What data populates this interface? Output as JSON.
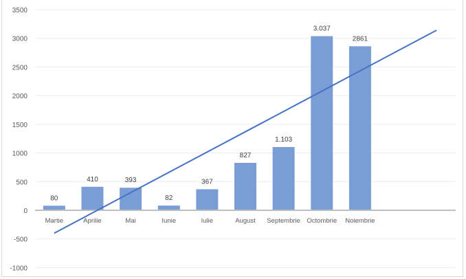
{
  "chart_data": {
    "type": "bar",
    "title": "",
    "xlabel": "",
    "ylabel": "",
    "ylim": [
      -1000,
      3500
    ],
    "yticks": [
      3500,
      3000,
      2500,
      2000,
      1500,
      1000,
      500,
      0,
      -500,
      -1000
    ],
    "grid": true,
    "legend": "none",
    "categories": [
      "Martie",
      "Aprilie",
      "Mai",
      "Iunie",
      "Iulie",
      "August",
      "Septembrie",
      "Octombrie",
      "Noiembrie",
      "",
      ""
    ],
    "values": [
      80,
      410,
      393,
      82,
      367,
      827,
      1103,
      3037,
      2861,
      null,
      null
    ],
    "data_labels": [
      "80",
      "410",
      "393",
      "82",
      "367",
      "827",
      "1.103",
      "3.037",
      "2861",
      "",
      ""
    ],
    "trendline": {
      "type": "linear",
      "start_value": -400,
      "end_value": 3140,
      "start_category_index": 0,
      "end_category_index": 10
    },
    "colors": {
      "bar": "#7b9dd6",
      "trendline": "#4472c4",
      "grid": "#ececec",
      "axis": "#bfbfbf"
    }
  }
}
